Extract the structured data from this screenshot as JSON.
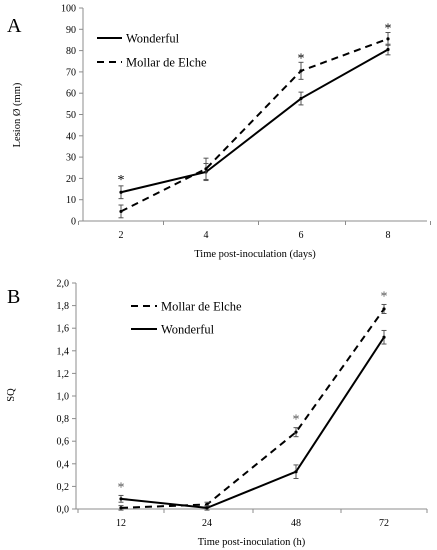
{
  "chart_data": [
    {
      "type": "line",
      "panel_label": "A",
      "title": "",
      "xlabel": "Time post-inoculation (days)",
      "ylabel": "Lesion Ø (mm)",
      "categories": [
        "2",
        "4",
        "6",
        "8"
      ],
      "ylim": [
        0,
        100
      ],
      "yticks": [
        "0",
        "10",
        "20",
        "30",
        "40",
        "50",
        "60",
        "70",
        "80",
        "90",
        "100"
      ],
      "legend_position": "top-left",
      "grid": false,
      "series": [
        {
          "name": "Wonderful",
          "style": "solid",
          "values": [
            13.5,
            23,
            57.5,
            80.5
          ],
          "errors": [
            3,
            4,
            3,
            2.5
          ]
        },
        {
          "name": "Mollar de Elche",
          "style": "dashed",
          "values": [
            4.5,
            24.5,
            70.5,
            85.5
          ],
          "errors": [
            3,
            5,
            4,
            3
          ]
        }
      ],
      "annotations": [
        {
          "category": "2",
          "text": "*"
        },
        {
          "category": "6",
          "text": "*"
        },
        {
          "category": "8",
          "text": "*"
        }
      ]
    },
    {
      "type": "line",
      "panel_label": "B",
      "title": "",
      "xlabel": "Time post-inoculation (h)",
      "ylabel": "SQ",
      "categories": [
        "12",
        "24",
        "48",
        "72"
      ],
      "ylim": [
        0,
        2
      ],
      "yticks": [
        "0,0",
        "0,2",
        "0,4",
        "0,6",
        "0,8",
        "1,0",
        "1,2",
        "1,4",
        "1,6",
        "1,8",
        "2,0"
      ],
      "legend_position": "top-left",
      "grid": false,
      "series": [
        {
          "name": "Mollar de Elche",
          "style": "dashed",
          "values": [
            0.01,
            0.04,
            0.68,
            1.77
          ],
          "errors": [
            0.02,
            0.02,
            0.04,
            0.04
          ]
        },
        {
          "name": "Wonderful",
          "style": "solid",
          "values": [
            0.09,
            0.01,
            0.33,
            1.52
          ],
          "errors": [
            0.03,
            0.02,
            0.06,
            0.06
          ]
        }
      ],
      "annotations": [
        {
          "category": "12",
          "text": "*"
        },
        {
          "category": "48",
          "text": "*"
        },
        {
          "category": "72",
          "text": "*"
        }
      ]
    }
  ]
}
